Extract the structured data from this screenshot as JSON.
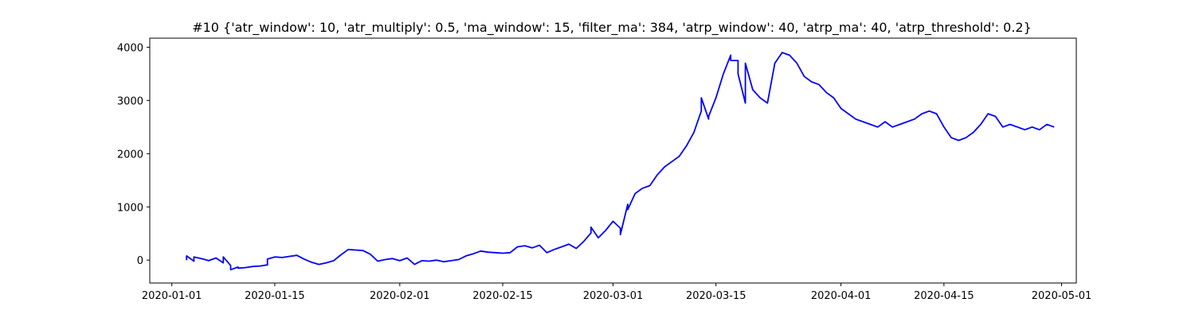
{
  "chart_data": {
    "type": "line",
    "title": "#10 {'atr_window': 10, 'atr_multiply': 0.5, 'ma_window': 15, 'filter_ma': 384, 'atrp_window': 40, 'atrp_ma': 40, 'atrp_threshold': 0.2}",
    "xlabel": "",
    "ylabel": "",
    "x_axis": "date",
    "xlim": [
      "2019-12-29",
      "2020-05-03"
    ],
    "ylim": [
      -430,
      4170
    ],
    "grid": false,
    "legend": "none",
    "line_color": "#0000ff",
    "xticks": [
      "2020-01-01",
      "2020-01-15",
      "2020-02-01",
      "2020-02-15",
      "2020-03-01",
      "2020-03-15",
      "2020-04-01",
      "2020-04-15",
      "2020-05-01"
    ],
    "yticks": [
      "0",
      "1000",
      "2000",
      "3000",
      "4000"
    ],
    "series": [
      {
        "x": [
          "2020-01-03",
          "2020-01-03",
          "2020-01-04",
          "2020-01-04",
          "2020-01-05",
          "2020-01-06",
          "2020-01-07",
          "2020-01-08",
          "2020-01-08",
          "2020-01-09",
          "2020-01-09",
          "2020-01-10",
          "2020-01-10",
          "2020-01-11",
          "2020-01-12",
          "2020-01-13",
          "2020-01-14",
          "2020-01-14",
          "2020-01-15",
          "2020-01-16",
          "2020-01-17",
          "2020-01-18",
          "2020-01-19",
          "2020-01-20",
          "2020-01-21",
          "2020-01-22",
          "2020-01-23",
          "2020-01-24",
          "2020-01-25",
          "2020-01-26",
          "2020-01-27",
          "2020-01-28",
          "2020-01-29",
          "2020-01-30",
          "2020-01-31",
          "2020-02-01",
          "2020-02-02",
          "2020-02-03",
          "2020-02-04",
          "2020-02-05",
          "2020-02-06",
          "2020-02-07",
          "2020-02-08",
          "2020-02-09",
          "2020-02-10",
          "2020-02-11",
          "2020-02-12",
          "2020-02-13",
          "2020-02-14",
          "2020-02-15",
          "2020-02-16",
          "2020-02-17",
          "2020-02-18",
          "2020-02-19",
          "2020-02-20",
          "2020-02-21",
          "2020-02-22",
          "2020-02-23",
          "2020-02-24",
          "2020-02-25",
          "2020-02-26",
          "2020-02-27",
          "2020-02-27",
          "2020-02-28",
          "2020-02-29",
          "2020-03-01",
          "2020-03-02",
          "2020-03-02",
          "2020-03-03",
          "2020-03-03",
          "2020-03-04",
          "2020-03-05",
          "2020-03-06",
          "2020-03-07",
          "2020-03-08",
          "2020-03-09",
          "2020-03-10",
          "2020-03-11",
          "2020-03-12",
          "2020-03-13",
          "2020-03-13",
          "2020-03-14",
          "2020-03-14",
          "2020-03-15",
          "2020-03-16",
          "2020-03-17",
          "2020-03-17",
          "2020-03-18",
          "2020-03-18",
          "2020-03-19",
          "2020-03-19",
          "2020-03-20",
          "2020-03-21",
          "2020-03-22",
          "2020-03-23",
          "2020-03-24",
          "2020-03-25",
          "2020-03-26",
          "2020-03-27",
          "2020-03-28",
          "2020-03-29",
          "2020-03-30",
          "2020-03-31",
          "2020-04-01",
          "2020-04-02",
          "2020-04-03",
          "2020-04-04",
          "2020-04-05",
          "2020-04-06",
          "2020-04-07",
          "2020-04-08",
          "2020-04-09",
          "2020-04-10",
          "2020-04-11",
          "2020-04-12",
          "2020-04-13",
          "2020-04-14",
          "2020-04-15",
          "2020-04-16",
          "2020-04-17",
          "2020-04-18",
          "2020-04-19",
          "2020-04-20",
          "2020-04-21",
          "2020-04-22",
          "2020-04-23",
          "2020-04-24",
          "2020-04-25",
          "2020-04-26",
          "2020-04-27",
          "2020-04-28",
          "2020-04-29",
          "2020-04-30"
        ],
        "y": [
          0,
          80,
          -20,
          60,
          30,
          -10,
          40,
          -50,
          60,
          -100,
          -180,
          -130,
          -150,
          -140,
          -120,
          -110,
          -90,
          20,
          60,
          50,
          70,
          90,
          20,
          -40,
          -80,
          -50,
          -10,
          100,
          200,
          190,
          180,
          110,
          -20,
          10,
          30,
          -10,
          40,
          -80,
          -10,
          -20,
          0,
          -30,
          -10,
          10,
          80,
          120,
          170,
          150,
          140,
          130,
          140,
          250,
          270,
          230,
          280,
          140,
          200,
          250,
          300,
          220,
          350,
          510,
          620,
          420,
          560,
          730,
          600,
          480,
          1050,
          950,
          1250,
          1350,
          1400,
          1600,
          1750,
          1850,
          1950,
          2150,
          2400,
          2800,
          3050,
          2650,
          2700,
          3050,
          3500,
          3850,
          3750,
          3750,
          3500,
          2950,
          3700,
          3200,
          3050,
          2950,
          3700,
          3900,
          3850,
          3700,
          3450,
          3350,
          3300,
          3150,
          3050,
          2850,
          2750,
          2650,
          2600,
          2550,
          2500,
          2600,
          2500,
          2550,
          2600,
          2650,
          2750,
          2800,
          2750,
          2500,
          2300,
          2250,
          2300,
          2400,
          2550,
          2750,
          2700,
          2500,
          2550,
          2500,
          2450,
          2500,
          2450,
          2550,
          2500
        ]
      }
    ]
  }
}
